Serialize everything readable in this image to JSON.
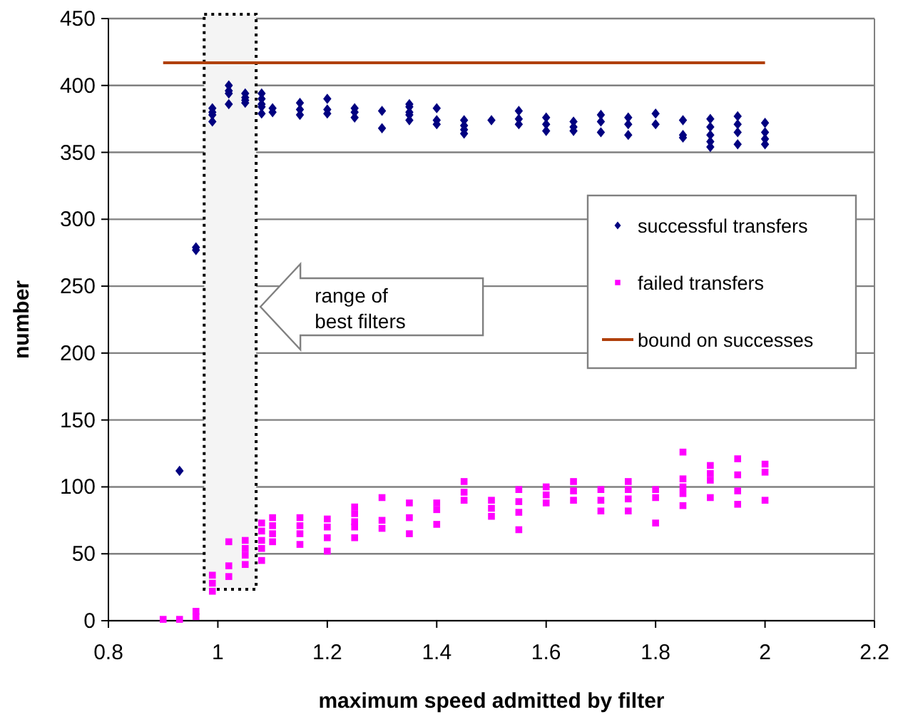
{
  "chart_data": {
    "type": "scatter",
    "xlabel": "maximum speed admitted by filter",
    "ylabel": "number",
    "xlim": [
      0.8,
      2.2
    ],
    "xticks": [
      {
        "value": 0.8,
        "label": "0.8"
      },
      1,
      {
        "value": 1.2,
        "label": "1.2"
      },
      {
        "value": 1.4,
        "label": "1.4"
      },
      {
        "value": 1.6,
        "label": "1.6"
      },
      {
        "value": 1.8,
        "label": "1.8"
      },
      2,
      {
        "value": 2.2,
        "label": "2.2"
      }
    ],
    "ylim": [
      0,
      450
    ],
    "yticks": [
      0,
      50,
      100,
      150,
      200,
      250,
      300,
      350,
      400,
      450
    ],
    "grid": "y",
    "legend": "right",
    "series": [
      {
        "name": "successful transfers",
        "color": "#000080",
        "marker": "diamond",
        "x": [
          0.93,
          0.96,
          0.96,
          0.99,
          0.99,
          0.99,
          0.99,
          1.02,
          1.02,
          1.02,
          1.02,
          1.05,
          1.05,
          1.05,
          1.05,
          1.08,
          1.08,
          1.08,
          1.08,
          1.08,
          1.1,
          1.1,
          1.15,
          1.15,
          1.15,
          1.2,
          1.2,
          1.2,
          1.25,
          1.25,
          1.25,
          1.3,
          1.3,
          1.35,
          1.35,
          1.35,
          1.35,
          1.35,
          1.4,
          1.4,
          1.4,
          1.45,
          1.45,
          1.45,
          1.45,
          1.5,
          1.55,
          1.55,
          1.55,
          1.6,
          1.6,
          1.6,
          1.65,
          1.65,
          1.65,
          1.7,
          1.7,
          1.7,
          1.75,
          1.75,
          1.75,
          1.8,
          1.8,
          1.85,
          1.85,
          1.85,
          1.9,
          1.9,
          1.9,
          1.9,
          1.9,
          1.95,
          1.95,
          1.95,
          1.95,
          2,
          2,
          2,
          2
        ],
        "values": [
          112,
          279,
          277,
          383,
          380,
          378,
          373,
          400,
          396,
          394,
          386,
          394,
          391,
          389,
          387,
          394,
          390,
          386,
          384,
          379,
          383,
          380,
          387,
          382,
          378,
          390,
          382,
          379,
          383,
          380,
          376,
          381,
          368,
          386,
          384,
          380,
          378,
          374,
          383,
          374,
          371,
          374,
          370,
          367,
          364,
          374,
          381,
          375,
          371,
          376,
          371,
          366,
          373,
          369,
          366,
          378,
          373,
          365,
          376,
          371,
          363,
          379,
          371,
          374,
          363,
          361,
          375,
          369,
          363,
          358,
          354,
          377,
          371,
          365,
          356,
          372,
          365,
          360,
          356
        ]
      },
      {
        "name": "failed transfers",
        "color": "#ff00ff",
        "marker": "square",
        "x": [
          0.9,
          0.93,
          0.96,
          0.96,
          0.99,
          0.99,
          0.99,
          1.02,
          1.02,
          1.02,
          1.05,
          1.05,
          1.05,
          1.05,
          1.08,
          1.08,
          1.08,
          1.08,
          1.08,
          1.1,
          1.1,
          1.1,
          1.1,
          1.15,
          1.15,
          1.15,
          1.15,
          1.2,
          1.2,
          1.2,
          1.2,
          1.25,
          1.25,
          1.25,
          1.25,
          1.25,
          1.3,
          1.3,
          1.3,
          1.35,
          1.35,
          1.35,
          1.4,
          1.4,
          1.4,
          1.45,
          1.45,
          1.45,
          1.5,
          1.5,
          1.5,
          1.55,
          1.55,
          1.55,
          1.55,
          1.6,
          1.6,
          1.6,
          1.65,
          1.65,
          1.65,
          1.7,
          1.7,
          1.7,
          1.75,
          1.75,
          1.75,
          1.75,
          1.8,
          1.8,
          1.8,
          1.85,
          1.85,
          1.85,
          1.85,
          1.85,
          1.9,
          1.9,
          1.9,
          1.9,
          1.95,
          1.95,
          1.95,
          1.95,
          2,
          2,
          2
        ],
        "values": [
          1,
          1,
          7,
          3,
          34,
          28,
          22,
          59,
          41,
          33,
          60,
          54,
          49,
          42,
          73,
          67,
          60,
          54,
          45,
          77,
          71,
          65,
          59,
          77,
          71,
          65,
          57,
          76,
          70,
          62,
          52,
          85,
          80,
          74,
          70,
          62,
          92,
          75,
          69,
          88,
          77,
          65,
          88,
          83,
          72,
          104,
          96,
          90,
          90,
          84,
          78,
          98,
          89,
          81,
          68,
          100,
          94,
          88,
          104,
          97,
          90,
          98,
          90,
          82,
          104,
          98,
          91,
          82,
          98,
          92,
          73,
          126,
          106,
          100,
          95,
          86,
          116,
          110,
          105,
          92,
          121,
          109,
          97,
          87,
          117,
          111,
          90
        ]
      },
      {
        "name": "bound on successes",
        "color": "#b0400c",
        "type": "line",
        "marker": "none",
        "x": [
          0.9,
          2
        ],
        "values": [
          417,
          417
        ]
      }
    ],
    "bands": [
      {
        "axis": "x",
        "from": 0.975,
        "to": 1.07,
        "label": "range of best filters",
        "color": "#f4f4f4"
      }
    ]
  }
}
